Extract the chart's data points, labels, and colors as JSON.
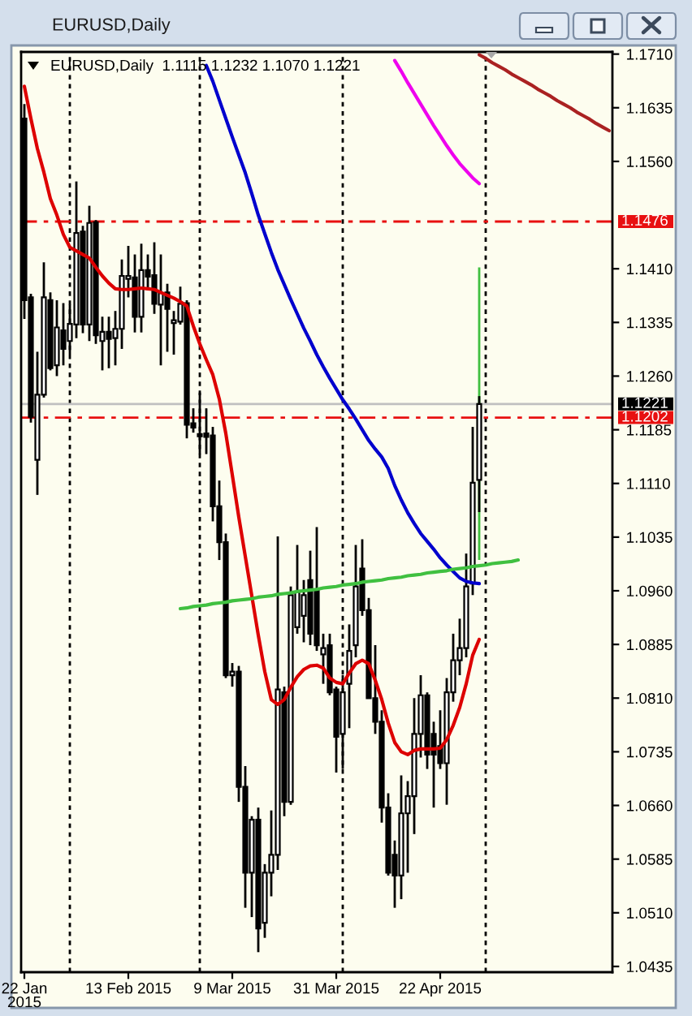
{
  "chart_data": {
    "type": "candlestick",
    "title": "EURUSD,Daily",
    "subtitle": "EURUSD,Daily  1.1115 1.1232 1.1070 1.1221",
    "categories": [
      "22 Jan 2015",
      null,
      null,
      null,
      null,
      null,
      null,
      null,
      null,
      null,
      null,
      null,
      null,
      null,
      null,
      null,
      "13 Feb 2015",
      null,
      null,
      null,
      null,
      null,
      null,
      null,
      null,
      null,
      null,
      null,
      null,
      null,
      null,
      null,
      "9 Mar 2015",
      null,
      null,
      null,
      null,
      null,
      null,
      null,
      null,
      null,
      null,
      null,
      null,
      null,
      null,
      null,
      "31 Mar 2015",
      null,
      null,
      null,
      null,
      null,
      null,
      null,
      null,
      null,
      null,
      null,
      null,
      null,
      null,
      null,
      "22 Apr 2015",
      null,
      null,
      null,
      null,
      null,
      null,
      null,
      null,
      null,
      null,
      null,
      null,
      null,
      null,
      null,
      null,
      null,
      null,
      null,
      null,
      null,
      null,
      null,
      null,
      null,
      null
    ],
    "ohlc": [
      [
        1.162,
        1.164,
        1.134,
        1.1366
      ],
      [
        1.137,
        1.1375,
        1.1195,
        1.1203
      ],
      [
        1.1143,
        1.1294,
        1.1094,
        1.1234
      ],
      [
        1.1234,
        1.1419,
        1.123,
        1.137
      ],
      [
        1.1366,
        1.1377,
        1.1268,
        1.1271
      ],
      [
        1.1275,
        1.1366,
        1.126,
        1.1328
      ],
      [
        1.1324,
        1.1362,
        1.1275,
        1.1298
      ],
      [
        1.1309,
        1.136,
        1.129,
        1.1333
      ],
      [
        1.1332,
        1.1532,
        1.1313,
        1.146
      ],
      [
        1.1462,
        1.147,
        1.132,
        1.1332
      ],
      [
        1.1332,
        1.1498,
        1.1309,
        1.1474
      ],
      [
        1.1475,
        1.1478,
        1.1305,
        1.1317
      ],
      [
        1.1309,
        1.1343,
        1.1268,
        1.1322
      ],
      [
        1.1322,
        1.1343,
        1.1271,
        1.1312
      ],
      [
        1.1313,
        1.1351,
        1.1275,
        1.1326
      ],
      [
        1.1326,
        1.1423,
        1.1298,
        1.14
      ],
      [
        1.1396,
        1.1442,
        1.137,
        1.14
      ],
      [
        1.1398,
        1.143,
        1.1321,
        1.1343
      ],
      [
        1.1343,
        1.1445,
        1.1321,
        1.1408
      ],
      [
        1.1408,
        1.143,
        1.138,
        1.1399
      ],
      [
        1.1401,
        1.1447,
        1.1347,
        1.1361
      ],
      [
        1.136,
        1.143,
        1.1275,
        1.1376
      ],
      [
        1.1377,
        1.1389,
        1.1294,
        1.1354
      ],
      [
        1.1334,
        1.1351,
        1.129,
        1.1338
      ],
      [
        1.1336,
        1.1385,
        1.1332,
        1.1361
      ],
      [
        1.1362,
        1.1366,
        1.1173,
        1.1192
      ],
      [
        1.1194,
        1.1215,
        1.1181,
        1.1188
      ],
      [
        1.1179,
        1.1237,
        1.1151,
        1.1176
      ],
      [
        1.118,
        1.1215,
        1.1151,
        1.1175
      ],
      [
        1.1177,
        1.1189,
        1.1057,
        1.1078
      ],
      [
        1.1078,
        1.1114,
        1.1003,
        1.1028
      ],
      [
        1.1028,
        1.104,
        1.0838,
        1.0842
      ],
      [
        1.0842,
        1.0859,
        1.0826,
        1.0847
      ],
      [
        1.0847,
        1.0855,
        1.0665,
        1.0686
      ],
      [
        1.0686,
        1.0715,
        1.0517,
        1.0566
      ],
      [
        1.0566,
        1.0645,
        1.0504,
        1.064
      ],
      [
        1.064,
        1.0657,
        1.0455,
        1.0488
      ],
      [
        1.0496,
        1.0578,
        1.0475,
        1.0566
      ],
      [
        1.0566,
        1.0653,
        1.0533,
        1.0591
      ],
      [
        1.0591,
        1.1036,
        1.057,
        1.0822
      ],
      [
        1.0818,
        1.0826,
        1.0645,
        1.0665
      ],
      [
        1.0665,
        1.0966,
        1.0661,
        1.0954
      ],
      [
        1.0909,
        1.1024,
        1.09,
        1.0958
      ],
      [
        1.0925,
        1.0975,
        1.0888,
        1.0954
      ],
      [
        1.0975,
        1.1016,
        1.0884,
        1.09
      ],
      [
        1.0962,
        1.1049,
        1.0876,
        1.0884
      ],
      [
        1.0871,
        1.09,
        1.083,
        1.088
      ],
      [
        1.0884,
        1.09,
        1.0814,
        1.0818
      ],
      [
        1.0822,
        1.0826,
        1.0706,
        1.0756
      ],
      [
        1.076,
        1.0842,
        1.0711,
        1.0818
      ],
      [
        1.083,
        1.0913,
        1.0768,
        1.0876
      ],
      [
        1.0884,
        1.1024,
        1.0867,
        1.0966
      ],
      [
        1.0991,
        1.1032,
        1.0925,
        1.0933
      ],
      [
        1.0933,
        1.095,
        1.081,
        1.081
      ],
      [
        1.081,
        1.0884,
        1.076,
        1.0777
      ],
      [
        1.0777,
        1.0793,
        1.0636,
        1.0657
      ],
      [
        1.0657,
        1.0677,
        1.0562,
        1.0566
      ],
      [
        1.0591,
        1.0611,
        1.0517,
        1.0562
      ],
      [
        1.0562,
        1.0702,
        1.0529,
        1.0649
      ],
      [
        1.0649,
        1.0694,
        1.0566,
        1.0673
      ],
      [
        1.0673,
        1.081,
        1.062,
        1.076
      ],
      [
        1.076,
        1.0842,
        1.0727,
        1.0814
      ],
      [
        1.0814,
        1.0818,
        1.0711,
        1.0731
      ],
      [
        1.076,
        1.0777,
        1.0657,
        1.0731
      ],
      [
        1.0743,
        1.0793,
        1.0711,
        1.0719
      ],
      [
        1.0719,
        1.0838,
        1.0661,
        1.0818
      ],
      [
        1.0818,
        1.09,
        1.0805,
        1.0863
      ],
      [
        1.0863,
        1.0921,
        1.0842,
        1.088
      ],
      [
        1.088,
        1.1012,
        1.0867,
        1.0966
      ],
      [
        1.097,
        1.1189,
        1.0954,
        1.1111
      ],
      [
        1.1115,
        1.1232,
        1.107,
        1.1221
      ],
      null,
      null,
      null,
      null,
      null,
      null,
      null,
      null,
      null,
      null,
      null,
      null,
      null,
      null,
      null,
      null,
      null,
      null,
      null,
      null
    ],
    "color": "#000000",
    "colors": [
      "#000000",
      "#000000",
      "#ffffff",
      "#ffffff",
      "#000000",
      "#ffffff",
      "#000000",
      "#ffffff",
      "#ffffff",
      "#000000",
      "#ffffff",
      "#000000",
      "#ffffff",
      "#000000",
      "#ffffff",
      "#ffffff",
      "#ffffff",
      "#000000",
      "#ffffff",
      "#000000",
      "#000000",
      "#ffffff",
      "#000000",
      "#ffffff",
      "#ffffff",
      "#000000",
      "#000000",
      "#000000",
      "#000000",
      "#000000",
      "#000000",
      "#000000",
      "#ffffff",
      "#000000",
      "#000000",
      "#ffffff",
      "#000000",
      "#ffffff",
      "#ffffff",
      "#ffffff",
      "#000000",
      "#ffffff",
      "#ffffff",
      "#ffffff",
      "#000000",
      "#000000",
      "#ffffff",
      "#000000",
      "#000000",
      "#ffffff",
      "#ffffff",
      "#ffffff",
      "#000000",
      "#000000",
      "#000000",
      "#000000",
      "#000000",
      "#000000",
      "#ffffff",
      "#ffffff",
      "#ffffff",
      "#ffffff",
      "#000000",
      "#000000",
      "#000000",
      "#ffffff",
      "#ffffff",
      "#ffffff",
      "#ffffff",
      "#ffffff",
      "#ffffff",
      null,
      null,
      null,
      null,
      null,
      null,
      null,
      null,
      null,
      null,
      null,
      null,
      null,
      null,
      null,
      null,
      null,
      null,
      null,
      null
    ],
    "series": [
      {
        "type": "line",
        "color": "#dd0000",
        "values": [
          1.1665,
          1.162,
          1.1578,
          1.1545,
          1.1508,
          1.1485,
          1.1458,
          1.144,
          1.1435,
          1.143,
          1.1425,
          1.1412,
          1.14,
          1.139,
          1.1382,
          1.1381,
          1.1381,
          1.1382,
          1.1383,
          1.1382,
          1.1381,
          1.1377,
          1.1373,
          1.1369,
          1.1364,
          1.1358,
          1.133,
          1.1305,
          1.1283,
          1.1262,
          1.1228,
          1.118,
          1.1122,
          1.1063,
          1.1008,
          1.0953,
          1.0898,
          1.0847,
          1.0808,
          1.0801,
          1.0808,
          1.0825,
          1.084,
          1.085,
          1.0855,
          1.0856,
          1.0852,
          1.0838,
          1.0832,
          1.083,
          1.0845,
          1.0858,
          1.0863,
          1.0858,
          1.0835,
          1.0808,
          1.0775,
          1.0748,
          1.0735,
          1.0731,
          1.0737,
          1.0739,
          1.0739,
          1.0739,
          1.074,
          1.0752,
          1.0772,
          1.0797,
          1.083,
          1.087,
          1.0892,
          null,
          null,
          null,
          null,
          null,
          null,
          null,
          null,
          null,
          null,
          null,
          null,
          null,
          null,
          null,
          null,
          null,
          null,
          null,
          null
        ]
      },
      {
        "type": "line",
        "color": "#0000cd",
        "values": [
          null,
          null,
          null,
          null,
          null,
          null,
          null,
          null,
          null,
          null,
          null,
          null,
          null,
          null,
          null,
          null,
          null,
          null,
          null,
          null,
          null,
          null,
          null,
          null,
          null,
          null,
          null,
          null,
          1.1694,
          1.1672,
          1.1646,
          1.162,
          1.1594,
          1.1569,
          1.1544,
          1.1515,
          1.1485,
          1.1459,
          1.1433,
          1.1409,
          1.1388,
          1.1367,
          1.1347,
          1.1327,
          1.1309,
          1.129,
          1.1273,
          1.1257,
          1.1242,
          1.1227,
          1.1214,
          1.12,
          1.1185,
          1.117,
          1.1158,
          1.1147,
          1.1131,
          1.1107,
          1.1087,
          1.1069,
          1.1054,
          1.104,
          1.1029,
          1.1018,
          1.1006,
          1.0996,
          1.0987,
          1.0978,
          1.0973,
          1.0971,
          1.097,
          null,
          null,
          null,
          null,
          null,
          null,
          null,
          null,
          null,
          null,
          null,
          null,
          null,
          null,
          null,
          null,
          null,
          null,
          null,
          null
        ]
      },
      {
        "type": "line",
        "color": "#ee00ee",
        "values": [
          null,
          null,
          null,
          null,
          null,
          null,
          null,
          null,
          null,
          null,
          null,
          null,
          null,
          null,
          null,
          null,
          null,
          null,
          null,
          null,
          null,
          null,
          null,
          null,
          null,
          null,
          null,
          null,
          null,
          null,
          null,
          null,
          null,
          null,
          null,
          null,
          null,
          null,
          null,
          null,
          null,
          null,
          null,
          null,
          null,
          null,
          null,
          null,
          null,
          null,
          null,
          null,
          null,
          null,
          null,
          null,
          null,
          1.1701,
          1.1686,
          1.167,
          1.1655,
          1.164,
          1.1625,
          1.161,
          1.1596,
          1.1582,
          1.1569,
          1.1557,
          1.1547,
          1.1537,
          1.1529,
          null,
          null,
          null,
          null,
          null,
          null,
          null,
          null,
          null,
          null,
          null,
          null,
          null,
          null,
          null,
          null,
          null,
          null,
          null,
          null
        ]
      },
      {
        "type": "line",
        "color": "#40c040",
        "values": [
          null,
          null,
          null,
          null,
          null,
          null,
          null,
          null,
          null,
          null,
          null,
          null,
          null,
          null,
          null,
          null,
          null,
          null,
          null,
          null,
          null,
          null,
          null,
          null,
          1.0935,
          1.0936,
          1.0938,
          1.0939,
          1.094,
          1.0942,
          1.0943,
          1.0944,
          1.0946,
          1.0947,
          1.0948,
          1.0949,
          1.0951,
          1.0952,
          1.0953,
          1.0955,
          1.0956,
          1.0957,
          1.0959,
          1.096,
          1.0961,
          1.0962,
          1.0964,
          1.0965,
          1.0966,
          1.0968,
          1.0969,
          1.097,
          1.0972,
          1.0973,
          1.0974,
          1.0975,
          1.0977,
          1.0978,
          1.0979,
          1.0981,
          1.0982,
          1.0983,
          1.0985,
          1.0986,
          1.0987,
          1.0988,
          1.099,
          1.0991,
          1.0992,
          1.0994,
          1.0995,
          1.0996,
          1.0998,
          1.0999,
          1.1,
          1.1001,
          1.1003,
          null,
          null,
          null,
          null,
          null,
          null,
          null,
          null,
          null,
          null,
          null,
          null,
          null,
          null
        ]
      },
      {
        "type": "bar",
        "color": "#40c040",
        "values": [
          null,
          null,
          null,
          null,
          null,
          null,
          null,
          null,
          null,
          null,
          null,
          null,
          null,
          null,
          null,
          null,
          null,
          null,
          null,
          null,
          null,
          null,
          null,
          null,
          null,
          null,
          null,
          null,
          null,
          null,
          null,
          null,
          null,
          null,
          null,
          null,
          null,
          null,
          null,
          null,
          null,
          null,
          null,
          null,
          null,
          null,
          null,
          null,
          null,
          null,
          null,
          null,
          null,
          null,
          null,
          null,
          null,
          null,
          null,
          null,
          null,
          null,
          null,
          null,
          null,
          null,
          null,
          null,
          null,
          null,
          0.0409,
          null,
          null,
          null,
          null,
          null,
          null,
          null,
          null,
          null,
          null,
          null,
          null,
          null,
          null,
          null,
          null,
          null,
          null,
          null,
          null
        ],
        "base": [
          null,
          null,
          null,
          null,
          null,
          null,
          null,
          null,
          null,
          null,
          null,
          null,
          null,
          null,
          null,
          null,
          null,
          null,
          null,
          null,
          null,
          null,
          null,
          null,
          null,
          null,
          null,
          null,
          null,
          null,
          null,
          null,
          null,
          null,
          null,
          null,
          null,
          null,
          null,
          null,
          null,
          null,
          null,
          null,
          null,
          null,
          null,
          null,
          null,
          null,
          null,
          null,
          null,
          null,
          null,
          null,
          null,
          null,
          null,
          null,
          null,
          null,
          null,
          null,
          null,
          null,
          null,
          null,
          null,
          null,
          1.1003,
          null,
          null,
          null,
          null,
          null,
          null,
          null,
          null,
          null,
          null,
          null,
          null,
          null,
          null,
          null,
          null,
          null,
          null,
          null,
          null
        ]
      },
      {
        "type": "line",
        "color": "#aa2222",
        "values": [
          null,
          null,
          null,
          null,
          null,
          null,
          null,
          null,
          null,
          null,
          null,
          null,
          null,
          null,
          null,
          null,
          null,
          null,
          null,
          null,
          null,
          null,
          null,
          null,
          null,
          null,
          null,
          null,
          null,
          null,
          null,
          null,
          null,
          null,
          null,
          null,
          null,
          null,
          null,
          null,
          null,
          null,
          null,
          null,
          null,
          null,
          null,
          null,
          null,
          null,
          null,
          null,
          null,
          null,
          null,
          null,
          null,
          null,
          null,
          null,
          null,
          null,
          null,
          null,
          null,
          null,
          null,
          null,
          null,
          null,
          1.1709,
          1.1704,
          1.1698,
          1.1693,
          1.1688,
          1.1682,
          1.1677,
          1.1672,
          1.1667,
          1.1661,
          1.1656,
          1.1651,
          1.1645,
          1.164,
          1.1635,
          1.1629,
          1.1624,
          1.1619,
          1.1613,
          1.1608,
          1.1603
        ]
      }
    ],
    "ylim": [
      1.0427,
      1.1713
    ],
    "yticks": [
      {
        "value": 1.171,
        "label": "1.1710"
      },
      1.1635,
      {
        "value": 1.156,
        "label": "1.1560"
      },
      {
        "value": 1.141,
        "label": "1.1410"
      },
      1.1335,
      {
        "value": 1.126,
        "label": "1.1260"
      },
      1.1185,
      {
        "value": 1.111,
        "label": "1.1110"
      },
      1.1035,
      {
        "value": 1.096,
        "label": "1.0960"
      },
      1.0885,
      {
        "value": 1.081,
        "label": "1.0810"
      },
      1.0735,
      {
        "value": 1.066,
        "label": "1.0660"
      },
      1.0585,
      {
        "value": 1.051,
        "label": "1.0510"
      },
      1.0435
    ],
    "grid": "x",
    "ref_lines": [
      {
        "axis": "y",
        "value": 1.1476,
        "label": "1.1476",
        "color": "#e81010",
        "line_style": "dashdot"
      },
      {
        "axis": "y",
        "value": 1.1202,
        "label": "1.1202",
        "color": "#e81010",
        "line_style": "dashdot"
      },
      {
        "axis": "y",
        "value": 1.1221,
        "label": "1.1221",
        "color": "#c0c0c0",
        "line_style": "solid"
      }
    ]
  }
}
